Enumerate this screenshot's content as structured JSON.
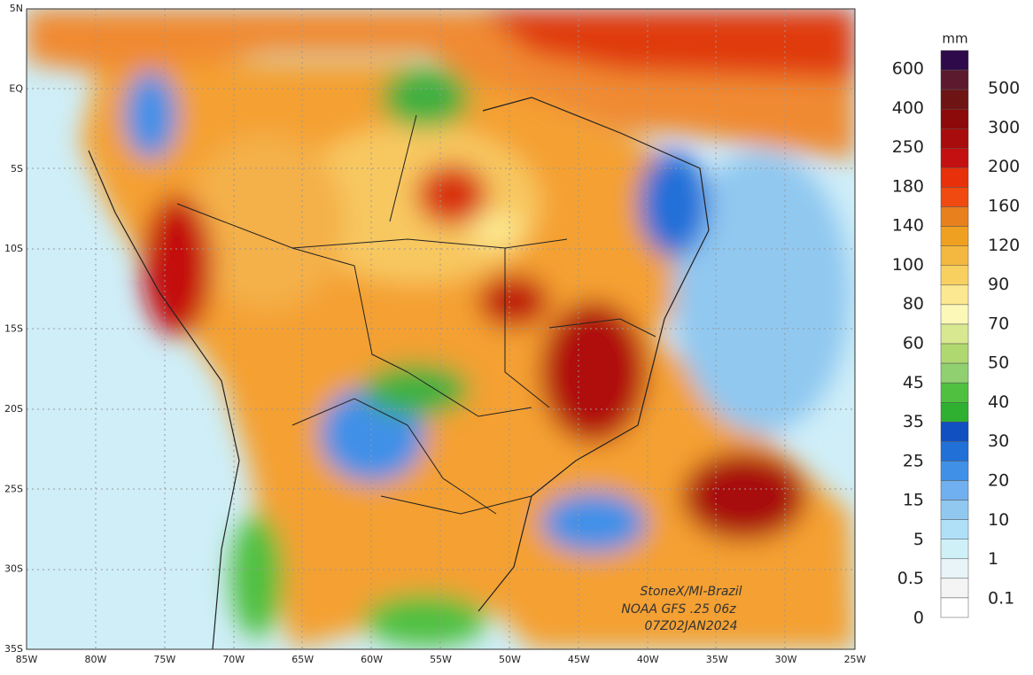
{
  "map": {
    "lat_labels": [
      "5N",
      "EQ",
      "5S",
      "10S",
      "15S",
      "20S",
      "25S",
      "30S",
      "35S"
    ],
    "lon_labels": [
      "85W",
      "80W",
      "75W",
      "70W",
      "65W",
      "60W",
      "55W",
      "50W",
      "45W",
      "40W",
      "35W",
      "30W",
      "25W"
    ],
    "credits": [
      "StoneX/MI-Brazil",
      "NOAA GFS .25 06z",
      "07Z02JAN2024"
    ]
  },
  "colorbar": {
    "unit": "mm",
    "left_labels": [
      "600",
      "400",
      "250",
      "180",
      "140",
      "100",
      "80",
      "60",
      "45",
      "35",
      "25",
      "15",
      "5",
      "0.5",
      "0"
    ],
    "right_labels": [
      "500",
      "300",
      "200",
      "160",
      "120",
      "90",
      "70",
      "50",
      "40",
      "30",
      "20",
      "10",
      "1",
      "0.1"
    ],
    "colors": [
      "#2e0a4a",
      "#5c1a2e",
      "#6e1414",
      "#8c0a0a",
      "#a80c0c",
      "#c41010",
      "#e8300a",
      "#f04a10",
      "#e8801e",
      "#f0a020",
      "#f4b840",
      "#f8d060",
      "#fce890",
      "#fcf8b8",
      "#d8e890",
      "#b0d870",
      "#90d070",
      "#50c040",
      "#30b030",
      "#1050c0",
      "#2070d8",
      "#4090e8",
      "#70b0f0",
      "#90c8f0",
      "#b0e0f8",
      "#d0f0f8",
      "#e8f4f8",
      "#f4f4f4",
      "#ffffff"
    ]
  }
}
